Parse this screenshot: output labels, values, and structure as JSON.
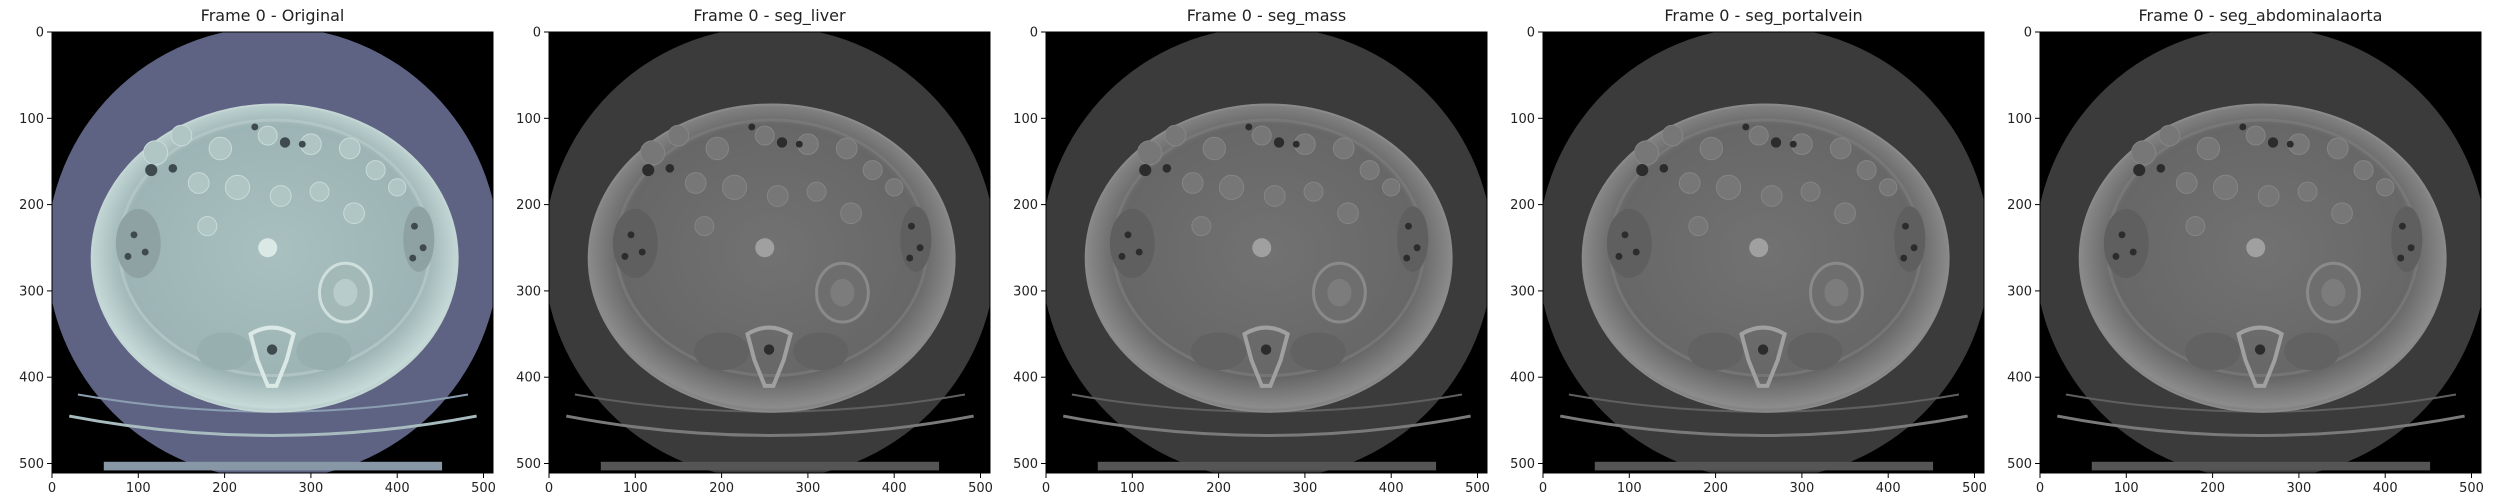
{
  "figure": {
    "background": "#ffffff",
    "axis_ticks": [
      0,
      100,
      200,
      300,
      400,
      500
    ],
    "axis_range": [
      0,
      511
    ],
    "panels": [
      {
        "title": "Frame 0 - Original",
        "colormap": "bone"
      },
      {
        "title": "Frame 0 - seg_liver",
        "colormap": "gray"
      },
      {
        "title": "Frame 0 - seg_mass",
        "colormap": "gray"
      },
      {
        "title": "Frame 0 - seg_portalvein",
        "colormap": "gray"
      },
      {
        "title": "Frame 0 - seg_abdominalaorta",
        "colormap": "gray"
      }
    ]
  },
  "colors": {
    "original_disc": "#5e6384",
    "original_body": "#9fb7b8",
    "original_body_edge": "#c3d6d4",
    "gray_disc": "#3b3b3b",
    "gray_body": "#6b6b6b",
    "gray_body_edge": "#8a8a8a"
  }
}
